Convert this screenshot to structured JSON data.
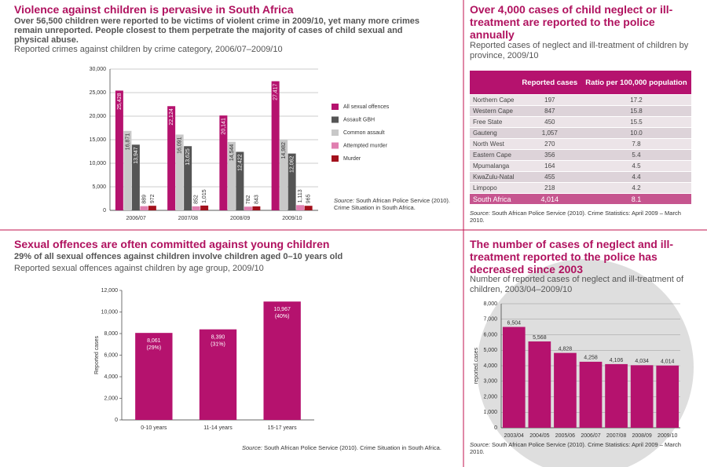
{
  "chart_data": [
    {
      "type": "bar",
      "title": "Violence against children is pervasive in South Africa",
      "subtitle": "Over 56,500 children were reported to be victims of violent crime in 2009/10, yet many more crimes remain unreported. People closest to them perpetrate the majority of cases of child sexual and physical abuse.",
      "caption": "Reported crimes against children by crime category, 2006/07–2009/10",
      "categories": [
        "2006/07",
        "2007/08",
        "2008/09",
        "2009/10"
      ],
      "series": [
        {
          "name": "All sexual offences",
          "color": "#b5126e",
          "values": [
            25428,
            22124,
            20141,
            27417
          ],
          "value_labels": [
            "25,428",
            "22,124",
            "20,141",
            "27,417"
          ]
        },
        {
          "name": "Common assault",
          "color": "#c8c8c8",
          "values": [
            16871,
            16091,
            14544,
            14982
          ],
          "value_labels": [
            "16,871",
            "16,091",
            "14,544",
            "14,982"
          ]
        },
        {
          "name": "Assault GBH",
          "color": "#555555",
          "values": [
            13947,
            13625,
            12422,
            12062
          ],
          "value_labels": [
            "13,947",
            "13,625",
            "12,422",
            "12,062"
          ]
        },
        {
          "name": "Attempted murder",
          "color": "#e07fb0",
          "values": [
            889,
            852,
            782,
            1113
          ],
          "value_labels": [
            "889",
            "852",
            "782",
            "1,113"
          ]
        },
        {
          "name": "Murder",
          "color": "#a3101c",
          "values": [
            972,
            1015,
            843,
            965
          ],
          "value_labels": [
            "972",
            "1,015",
            "843",
            "965"
          ]
        }
      ],
      "legend_order": [
        0,
        2,
        1,
        3,
        4
      ],
      "legend": "right",
      "ylim": [
        0,
        30000
      ],
      "yticks": [
        0,
        {
          "value": 5000,
          "label": "5,000"
        },
        {
          "value": 10000,
          "label": "10,000"
        },
        {
          "value": 15000,
          "label": "15,000"
        },
        {
          "value": 20000,
          "label": "20,000"
        },
        {
          "value": 25000,
          "label": "25,000"
        },
        {
          "value": 30000,
          "label": "30,000"
        }
      ],
      "grid": true,
      "source_label": "Source:",
      "source": "South African Police Service (2010). Crime Situation in South Africa."
    },
    {
      "type": "bar",
      "title": "Sexual offences are often committed against young children",
      "subtitle": "29% of all sexual offences against children involve children aged 0–10 years old",
      "caption": "Reported sexual offences against children by age group, 2009/10",
      "y_label": "Reported cases",
      "categories": [
        "0-10 years",
        "11-14 years",
        "15-17 years"
      ],
      "values": [
        8061,
        8390,
        10967
      ],
      "value_labels": [
        "8,061",
        "8,390",
        "10,967"
      ],
      "percent_labels": [
        "(29%)",
        "(31%)",
        "(40%)"
      ],
      "color": "#b5126e",
      "ylim": [
        0,
        12000
      ],
      "yticks": [
        0,
        {
          "value": 2000,
          "label": "2,000"
        },
        {
          "value": 4000,
          "label": "4,000"
        },
        {
          "value": 6000,
          "label": "6,000"
        },
        {
          "value": 8000,
          "label": "8,000"
        },
        {
          "value": 10000,
          "label": "10,000"
        },
        {
          "value": 12000,
          "label": "12,000"
        }
      ],
      "grid": false,
      "source_label": "Source:",
      "source": "South African Police Service (2010). Crime Situation in South Africa."
    },
    {
      "type": "bar",
      "title": "The number of cases of neglect and ill-treatment reported to the police has decreased since 2003",
      "caption": "Number of reported cases of neglect and ill-treatment of children, 2003/04–2009/10",
      "y_label": "reported cases",
      "categories": [
        "2003/04",
        "2004/05",
        "2005/06",
        "2006/07",
        "2007/08",
        "2008/09",
        "2009/10"
      ],
      "values": [
        6504,
        5568,
        4828,
        4258,
        4106,
        4034,
        4014
      ],
      "value_labels": [
        "6,504",
        "5,568",
        "4,828",
        "4,258",
        "4,106",
        "4,034",
        "4,014"
      ],
      "color": "#b5126e",
      "ylim": [
        0,
        8000
      ],
      "yticks": [
        0,
        {
          "value": 1000,
          "label": "1,000"
        },
        {
          "value": 2000,
          "label": "2,000"
        },
        {
          "value": 3000,
          "label": "3,000"
        },
        {
          "value": 4000,
          "label": "4,000"
        },
        {
          "value": 5000,
          "label": "5,000"
        },
        {
          "value": 6000,
          "label": "6,000"
        },
        {
          "value": 7000,
          "label": "7,000"
        },
        {
          "value": 8000,
          "label": "8,000"
        }
      ],
      "grid": true,
      "source_label": "Source:",
      "source": "South African Police Service (2010). Crime Statistics: April 2009 – March 2010."
    }
  ],
  "table": {
    "title": "Over 4,000 cases of child neglect or ill-treatment are reported to the police annually",
    "caption": "Reported cases of neglect and ill-treatment of children by province, 2009/10",
    "columns": [
      "Reported cases",
      "Ratio per 100,000 population"
    ],
    "rows": [
      [
        "Northern Cape",
        "197",
        "17.2"
      ],
      [
        "Western Cape",
        "847",
        "15.8"
      ],
      [
        "Free State",
        "450",
        "15.5"
      ],
      [
        "Gauteng",
        "1,057",
        "10.0"
      ],
      [
        "North West",
        "270",
        "7.8"
      ],
      [
        "Eastern Cape",
        "356",
        "5.4"
      ],
      [
        "Mpumalanga",
        "164",
        "4.5"
      ],
      [
        "KwaZulu-Natal",
        "455",
        "4.4"
      ],
      [
        "Limpopo",
        "218",
        "4.2"
      ],
      [
        "South Africa",
        "4,014",
        "8.1"
      ]
    ],
    "source_label": "Source:",
    "source": "South African Police Service (2010). Crime Statistics: April 2009 – March 2010."
  }
}
